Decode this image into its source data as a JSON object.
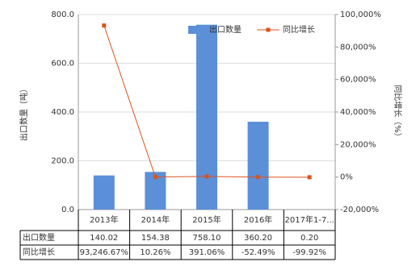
{
  "chart_data": {
    "type": "bar_line",
    "categories": [
      "2013年",
      "2014年",
      "2015年",
      "2016年",
      "2017年1-7..."
    ],
    "series": [
      {
        "name": "出口数量",
        "type": "bar",
        "color": "#5b8fd8",
        "values": [
          140.02,
          154.38,
          758.1,
          360.2,
          0.2
        ],
        "value_labels": [
          "140.02",
          "154.38",
          "758.10",
          "360.20",
          "0.20"
        ]
      },
      {
        "name": "同比增长",
        "type": "line",
        "axis": "y2",
        "color": "#d9531e",
        "values": [
          93246.67,
          10.26,
          391.06,
          -52.49,
          -99.92
        ],
        "value_labels": [
          "93,246.67%",
          "10.26%",
          "391.06%",
          "-52.49%",
          "-99.92%"
        ]
      }
    ],
    "ylabel": "出口数量（吨）",
    "y2label": "同比增长（%）",
    "ylim": [
      0,
      800
    ],
    "yticks": [
      {
        "value": 0,
        "label": "0.0"
      },
      {
        "value": 200,
        "label": "200.0"
      },
      {
        "value": 400,
        "label": "400.0"
      },
      {
        "value": 600,
        "label": "600.0"
      },
      {
        "value": 800,
        "label": "800.0"
      }
    ],
    "y2lim": [
      -20000,
      100000
    ],
    "y2ticks": [
      {
        "value": -20000,
        "label": "-20,000%"
      },
      {
        "value": 0,
        "label": "0%"
      },
      {
        "value": 20000,
        "label": "20,000%"
      },
      {
        "value": 40000,
        "label": "40,000%"
      },
      {
        "value": 60000,
        "label": "60,000%"
      },
      {
        "value": 80000,
        "label": "80,000%"
      },
      {
        "value": 100000,
        "label": "100,000%"
      }
    ],
    "legend": "top-center"
  }
}
